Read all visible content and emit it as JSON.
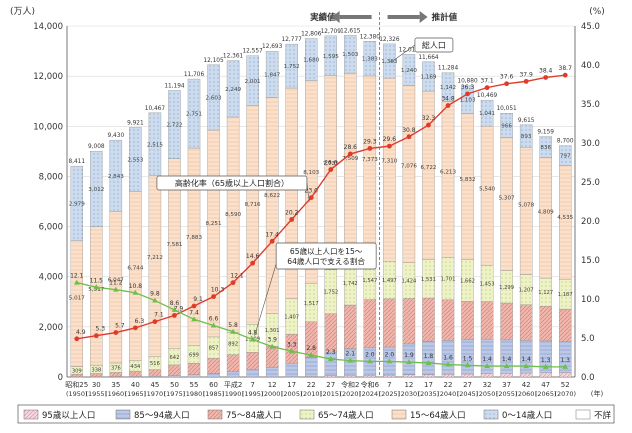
{
  "chart_data": {
    "type": "bar",
    "left_unit": "(万人)",
    "right_unit": "(%)",
    "left_ticks": [
      "0",
      "2,000",
      "4,000",
      "6,000",
      "8,000",
      "10,000",
      "12,000",
      "14,000"
    ],
    "right_ticks": [
      "0.0",
      "5.0",
      "10.0",
      "15.0",
      "20.0",
      "25.0",
      "30.0",
      "35.0",
      "40.0",
      "45.0"
    ],
    "ylim_left": [
      0,
      14000
    ],
    "ylim_right": [
      0,
      45
    ],
    "categories_era": [
      "昭和25",
      "30",
      "35",
      "40",
      "45",
      "50",
      "55",
      "60",
      "平成2",
      "7",
      "12",
      "17",
      "22",
      "27",
      "令和2",
      "令和6",
      "7",
      "12",
      "17",
      "22",
      "27",
      "32",
      "37",
      "42",
      "47",
      "52"
    ],
    "categories_year": [
      "(1950)",
      "(1955)",
      "(1960)",
      "(1965)",
      "(1970)",
      "(1975)",
      "(1980)",
      "(1985)",
      "(1990)",
      "(1995)",
      "(2000)",
      "(2005)",
      "(2010)",
      "(2015)",
      "(2020)",
      "(2024)",
      "(2025)",
      "(2030)",
      "(2035)",
      "(2040)",
      "(2045)",
      "(2050)",
      "(2055)",
      "(2060)",
      "(2065)",
      "(2070)"
    ],
    "x_unit": "(年)",
    "phase_labels": {
      "actual": "実績値",
      "projection": "推計値"
    },
    "series": [
      {
        "name": "95歳以上人口",
        "key": "p95",
        "values": [
          0,
          0,
          0,
          0,
          0,
          0,
          0,
          1,
          2,
          3,
          3,
          9,
          30,
          50,
          70,
          73,
          76,
          90,
          100,
          110,
          120,
          140,
          150,
          160,
          170,
          180
        ]
      },
      {
        "name": "85～94歳人口",
        "key": "p85",
        "values": [
          10,
          13,
          19,
          24,
          35,
          54,
          91,
          141,
          208,
          287,
          380,
          541,
          760,
          935,
          1062,
          1090,
          1120,
          1230,
          1330,
          1350,
          1370,
          1370,
          1330,
          1300,
          1270,
          1230
        ]
      },
      {
        "name": "75～84歳人口",
        "key": "p75",
        "values": [
          97,
          126,
          163,
          200,
          260,
          430,
          460,
          600,
          680,
          700,
          840,
          1160,
          1410,
          1540,
          1740,
          1925,
          1920,
          1810,
          1720,
          1620,
          1530,
          1500,
          1470,
          1420,
          1380,
          1300
        ]
      },
      {
        "name": "65～74歳人口",
        "key": "p65",
        "values": [
          309,
          338,
          376,
          434,
          516,
          642,
          699,
          857,
          892,
          1109,
          1301,
          1407,
          1517,
          1752,
          1742,
          1547,
          1497,
          1424,
          1531,
          1701,
          1662,
          1453,
          1299,
          1207,
          1127,
          1187
        ]
      },
      {
        "name": "15～64歳人口",
        "key": "p15",
        "values": [
          5017,
          5517,
          6047,
          6744,
          7212,
          7581,
          7883,
          8251,
          8590,
          8716,
          8622,
          8409,
          8103,
          7735,
          7509,
          7373,
          7310,
          7076,
          6722,
          6213,
          5832,
          5540,
          5307,
          5078,
          4809,
          4535
        ]
      },
      {
        "name": "0～14歳人口",
        "key": "p0",
        "values": [
          2979,
          3012,
          2843,
          2553,
          2515,
          2722,
          2751,
          2603,
          2249,
          2001,
          1847,
          1752,
          1680,
          1595,
          1503,
          1383,
          1363,
          1240,
          1169,
          1142,
          1103,
          1041,
          966,
          893,
          836,
          797
        ]
      },
      {
        "name": "不詳",
        "key": "unk",
        "values": [
          0,
          0,
          0,
          0,
          0,
          0,
          0,
          0,
          0,
          0,
          0,
          0,
          0,
          0,
          0,
          0,
          0,
          0,
          0,
          0,
          0,
          0,
          0,
          0,
          0,
          0
        ]
      }
    ],
    "totals": [
      "8,411",
      "9,008",
      "9,430",
      "9,921",
      "10,467",
      "11,194",
      "11,706",
      "12,105",
      "12,361",
      "12,557",
      "12,693",
      "12,777",
      "12,806",
      "12,709",
      "12,615",
      "12,380",
      "12,326",
      "12,012",
      "11,664",
      "11,284",
      "10,880",
      "10,469",
      "10,051",
      "9,615",
      "9,159",
      "8,700"
    ],
    "p15_labels": [
      "5,017",
      "5,517",
      "6,047",
      "6,744",
      "7,212",
      "7,581",
      "7,883",
      "8,251",
      "8,590",
      "8,716",
      "8,622",
      "8,409",
      "8,103",
      "7,735",
      "7,509",
      "7,373",
      "7,310",
      "7,076",
      "6,722",
      "6,213",
      "5,832",
      "5,540",
      "5,307",
      "5,078",
      "4,809",
      "4,535"
    ],
    "p0_labels": [
      "2,979",
      "3,012",
      "2,843",
      "2,553",
      "2,515",
      "2,722",
      "2,751",
      "2,603",
      "2,249",
      "2,001",
      "1,847",
      "1,752",
      "1,680",
      "1,595",
      "1,503",
      "1,383",
      "1,363",
      "1,240",
      "1,169",
      "1,142",
      "1,103",
      "1,041",
      "966",
      "893",
      "836",
      "797"
    ],
    "p65_labels": [
      "309",
      "338",
      "376",
      "434",
      "516",
      "642",
      "699",
      "857",
      "892",
      "1,109",
      "1,301",
      "1,407",
      "1,517",
      "1,752",
      "1,742",
      "1,547",
      "1,497",
      "1,424",
      "1,531",
      "1,701",
      "1,662",
      "1,453",
      "1,299",
      "1,207",
      "1,127",
      "1,187"
    ],
    "aging_rate": {
      "name": "高齢化率（65歳以上人口割合）",
      "values": [
        4.9,
        5.3,
        5.7,
        6.3,
        7.1,
        7.9,
        9.1,
        10.3,
        12.1,
        14.6,
        17.4,
        20.2,
        23.0,
        26.6,
        28.6,
        29.3,
        29.6,
        30.8,
        32.3,
        34.8,
        36.3,
        37.1,
        37.6,
        37.9,
        38.4,
        38.7
      ],
      "labels": [
        "4.9",
        "5.3",
        "5.7",
        "6.3",
        "7.1",
        "7.9",
        "9.1",
        "10.3",
        "12.1",
        "14.6",
        "17.4",
        "20.2",
        "23.0",
        "26.6",
        "28.6",
        "29.3",
        "29.6",
        "30.8",
        "32.3",
        "34.8",
        "36.3",
        "37.1",
        "37.6",
        "37.9",
        "38.4",
        "38.7"
      ],
      "color": "#e03a2c"
    },
    "support_ratio": {
      "name": "65歳以上人口を15～64歳人口で支える割合",
      "values": [
        12.1,
        11.5,
        11.2,
        10.8,
        9.8,
        8.6,
        7.4,
        6.6,
        5.8,
        4.8,
        3.9,
        3.3,
        2.8,
        2.3,
        2.1,
        2.0,
        2.0,
        1.9,
        1.8,
        1.6,
        1.5,
        1.4,
        1.4,
        1.4,
        1.3,
        1.3
      ],
      "labels": [
        "12.1",
        "11.5",
        "11.2",
        "10.8",
        "9.8",
        "8.6",
        "7.4",
        "6.6",
        "5.8",
        "4.8",
        "3.9",
        "3.3",
        "2.8",
        "2.3",
        "2.1",
        "2.0",
        "2.0",
        "1.9",
        "1.8",
        "1.6",
        "1.5",
        "1.4",
        "1.4",
        "1.4",
        "1.3",
        "1.3"
      ],
      "color": "#6dbf4c"
    },
    "annotations": {
      "total_label": "総人口",
      "aging_label": "高齢化率（65歳以上人口割合）",
      "support_label_1": "65歳以上人口を15～",
      "support_label_2": "64歳人口で支える割合"
    },
    "colors": {
      "p95": "#f6d5dc",
      "p85": "#bcc9e6",
      "p75": "#f0b6ad",
      "p65": "#eef3c7",
      "p15": "#fbe1cc",
      "p0": "#ccdcee",
      "unk": "#ffffff",
      "aging": "#e03a2c",
      "support": "#6dbf4c"
    },
    "legend": [
      "95歳以上人口",
      "85～94歳人口",
      "75～84歳人口",
      "65～74歳人口",
      "15～64歳人口",
      "0～14歳人口",
      "不詳"
    ]
  }
}
